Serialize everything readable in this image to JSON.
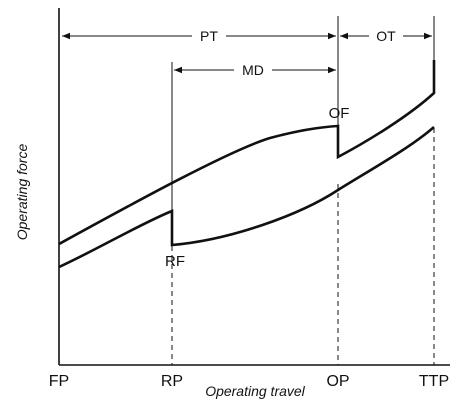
{
  "diagram": {
    "y_axis_label": "Operating force",
    "x_axis_label": "Operating travel",
    "x_positions": {
      "fp": "FP",
      "rp": "RP",
      "op": "OP",
      "ttp": "TTP"
    },
    "point_labels": {
      "of": "OF",
      "rf": "RF"
    },
    "spans": {
      "pt": "PT",
      "md": "MD",
      "ot": "OT"
    },
    "stroke_color": "#111111",
    "background_color": "#ffffff"
  }
}
